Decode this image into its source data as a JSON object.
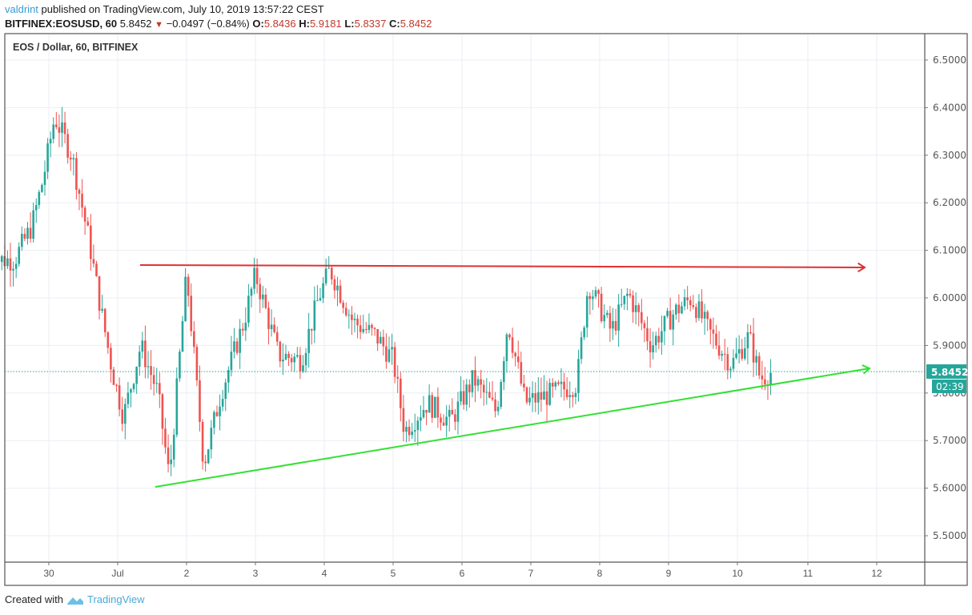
{
  "header": {
    "author": "valdrint",
    "published_text": " published on TradingView.com, July 10, 2019 13:57:22 CEST",
    "symbol": "BITFINEX:EOSUSD, 60",
    "last": "5.8452",
    "change": "−0.0497 (−0.84%)",
    "open_label": "O:",
    "open": "5.8436",
    "high_label": "H:",
    "high": "5.9181",
    "low_label": "L:",
    "low": "5.8337",
    "close_label": "C:",
    "close": "5.8452",
    "direction_icon": "triangle-down-icon"
  },
  "chart_title": "EOS / Dollar, 60, BITFINEX",
  "footer": {
    "created_with": "Created with",
    "brand": "TradingView",
    "brand_icon": "tradingview-logo-icon"
  },
  "colors": {
    "up": "#26a69a",
    "down": "#ef5350",
    "resistance": "#e03131",
    "support": "#33e033",
    "grid": "#e9eef3",
    "price_label_bg": "#26a69a"
  },
  "chart_data": {
    "type": "candlestick",
    "title": "EOS / Dollar, 60, BITFINEX",
    "timeframe": "60 min",
    "ylim": [
      5.41,
      6.56
    ],
    "y_ticks": [
      "6.5000",
      "6.4000",
      "6.3000",
      "6.2000",
      "6.1000",
      "6.0000",
      "5.9000",
      "5.8000",
      "5.7000",
      "5.6000",
      "5.5000"
    ],
    "x_ticks": [
      "30",
      "Jul",
      "2",
      "3",
      "4",
      "5",
      "6",
      "7",
      "8",
      "9",
      "10",
      "11",
      "12"
    ],
    "current_price": "5.8452",
    "countdown": "02:39",
    "annotations": [
      {
        "type": "arrow",
        "label": "resistance",
        "color": "#e03131",
        "from": {
          "date": "Jul 1 ~07:00",
          "price": 6.066
        },
        "to": {
          "date": "Jul 11 ~20:00",
          "price": 6.061
        }
      },
      {
        "type": "arrow",
        "label": "support",
        "color": "#33e033",
        "from": {
          "date": "Jul 1 ~15:00",
          "price": 5.602
        },
        "to": {
          "date": "Jul 11 ~21:00",
          "price": 5.848
        }
      }
    ],
    "close_path": [
      {
        "t": "Jun 29 12:00",
        "p": 6.08
      },
      {
        "t": "Jun 29 18:00",
        "p": 6.15
      },
      {
        "t": "Jun 29 22:00",
        "p": 6.25
      },
      {
        "t": "Jun 30 02:00",
        "p": 6.38
      },
      {
        "t": "Jun 30 08:00",
        "p": 6.3
      },
      {
        "t": "Jun 30 14:00",
        "p": 6.12
      },
      {
        "t": "Jun 30 18:00",
        "p": 5.98
      },
      {
        "t": "Jun 30 22:00",
        "p": 5.85
      },
      {
        "t": "Jul 1 02:00",
        "p": 5.75
      },
      {
        "t": "Jul 1 08:00",
        "p": 5.9
      },
      {
        "t": "Jul 1 14:00",
        "p": 5.8
      },
      {
        "t": "Jul 1 18:00",
        "p": 5.62
      },
      {
        "t": "Jul 2 00:00",
        "p": 6.05
      },
      {
        "t": "Jul 2 06:00",
        "p": 5.65
      },
      {
        "t": "Jul 2 12:00",
        "p": 5.8
      },
      {
        "t": "Jul 2 20:00",
        "p": 5.95
      },
      {
        "t": "Jul 3 00:00",
        "p": 6.05
      },
      {
        "t": "Jul 3 08:00",
        "p": 5.88
      },
      {
        "t": "Jul 3 16:00",
        "p": 5.87
      },
      {
        "t": "Jul 3 22:00",
        "p": 6.0
      },
      {
        "t": "Jul 4 02:00",
        "p": 6.06
      },
      {
        "t": "Jul 4 10:00",
        "p": 5.95
      },
      {
        "t": "Jul 4 18:00",
        "p": 5.92
      },
      {
        "t": "Jul 5 00:00",
        "p": 5.87
      },
      {
        "t": "Jul 5 04:00",
        "p": 5.72
      },
      {
        "t": "Jul 5 12:00",
        "p": 5.78
      },
      {
        "t": "Jul 5 20:00",
        "p": 5.74
      },
      {
        "t": "Jul 6 04:00",
        "p": 5.83
      },
      {
        "t": "Jul 6 12:00",
        "p": 5.76
      },
      {
        "t": "Jul 6 16:00",
        "p": 5.95
      },
      {
        "t": "Jul 6 22:00",
        "p": 5.78
      },
      {
        "t": "Jul 7 08:00",
        "p": 5.8
      },
      {
        "t": "Jul 7 16:00",
        "p": 5.82
      },
      {
        "t": "Jul 7 20:00",
        "p": 6.03
      },
      {
        "t": "Jul 8 04:00",
        "p": 5.93
      },
      {
        "t": "Jul 8 10:00",
        "p": 6.01
      },
      {
        "t": "Jul 8 18:00",
        "p": 5.9
      },
      {
        "t": "Jul 9 02:00",
        "p": 5.97
      },
      {
        "t": "Jul 9 08:00",
        "p": 6.0
      },
      {
        "t": "Jul 9 14:00",
        "p": 5.93
      },
      {
        "t": "Jul 9 22:00",
        "p": 5.86
      },
      {
        "t": "Jul 10 04:00",
        "p": 5.92
      },
      {
        "t": "Jul 10 08:00",
        "p": 5.83
      },
      {
        "t": "Jul 10 12:00",
        "p": 5.8452
      }
    ]
  }
}
